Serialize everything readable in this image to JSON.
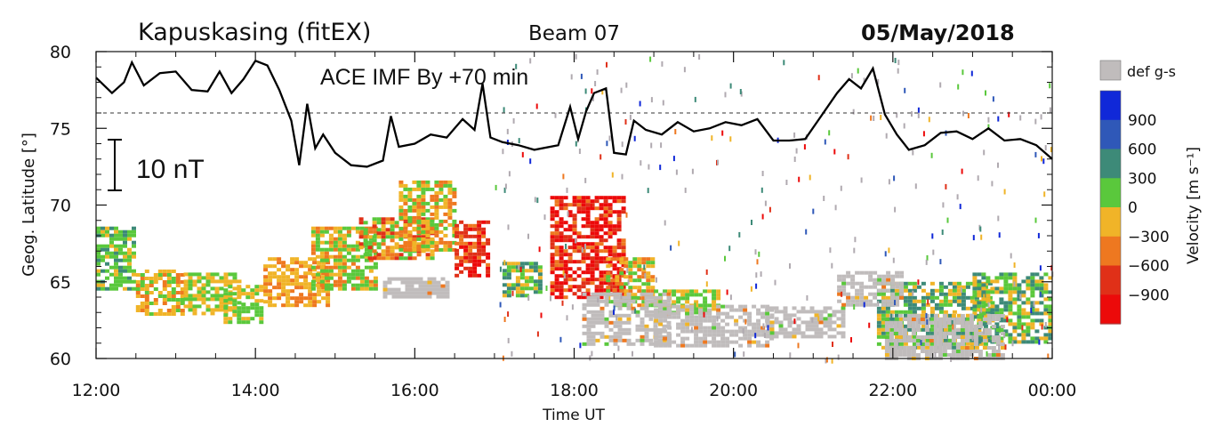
{
  "header": {
    "station": "Kapuskasing (fitEX)",
    "beam": "Beam 07",
    "date": "05/May/2018"
  },
  "chart_data": {
    "type": "heatmap",
    "xlabel": "Time UT",
    "ylabel": "Geog. Latitude [°]",
    "x_ticks": [
      "12:00",
      "14:00",
      "16:00",
      "18:00",
      "20:00",
      "22:00",
      "00:00"
    ],
    "x_range_hours": [
      12,
      24
    ],
    "y_ticks": [
      60,
      65,
      70,
      75,
      80
    ],
    "ylim": [
      60,
      80
    ],
    "colorbar": {
      "label": "Velocity [m s⁻¹]",
      "gs_label": "def g-s",
      "gs_color": "#c0bcbc",
      "ticks": [
        "900",
        "600",
        "300",
        "0",
        "−300",
        "−600",
        "−900"
      ],
      "colors": [
        "#1028d8",
        "#2f58b8",
        "#3d8a78",
        "#5ac83c",
        "#f0b428",
        "#ee7820",
        "#e03018",
        "#ec0a0a"
      ]
    },
    "overlay": {
      "label": "ACE IMF By  +70 min",
      "scale_label": "10 nT",
      "reference_latitude": 76,
      "trace_latitude": [
        [
          12.0,
          78.3
        ],
        [
          12.2,
          77.3
        ],
        [
          12.35,
          78.0
        ],
        [
          12.45,
          79.3
        ],
        [
          12.6,
          77.8
        ],
        [
          12.8,
          78.6
        ],
        [
          13.0,
          78.7
        ],
        [
          13.2,
          77.5
        ],
        [
          13.4,
          77.4
        ],
        [
          13.55,
          78.7
        ],
        [
          13.7,
          77.3
        ],
        [
          13.85,
          78.2
        ],
        [
          14.0,
          79.4
        ],
        [
          14.15,
          79.1
        ],
        [
          14.3,
          77.5
        ],
        [
          14.45,
          75.5
        ],
        [
          14.55,
          72.6
        ],
        [
          14.65,
          76.6
        ],
        [
          14.75,
          73.7
        ],
        [
          14.85,
          74.6
        ],
        [
          15.0,
          73.4
        ],
        [
          15.2,
          72.6
        ],
        [
          15.4,
          72.5
        ],
        [
          15.6,
          72.9
        ],
        [
          15.7,
          75.8
        ],
        [
          15.8,
          73.8
        ],
        [
          16.0,
          74.0
        ],
        [
          16.2,
          74.6
        ],
        [
          16.4,
          74.4
        ],
        [
          16.6,
          75.6
        ],
        [
          16.75,
          74.9
        ],
        [
          16.85,
          77.9
        ],
        [
          16.95,
          74.4
        ],
        [
          17.1,
          74.1
        ],
        [
          17.3,
          73.9
        ],
        [
          17.5,
          73.6
        ],
        [
          17.8,
          73.9
        ],
        [
          17.95,
          76.4
        ],
        [
          18.05,
          74.3
        ],
        [
          18.15,
          76.1
        ],
        [
          18.25,
          77.3
        ],
        [
          18.4,
          77.6
        ],
        [
          18.5,
          73.4
        ],
        [
          18.65,
          73.3
        ],
        [
          18.75,
          75.5
        ],
        [
          18.9,
          74.9
        ],
        [
          19.1,
          74.6
        ],
        [
          19.3,
          75.4
        ],
        [
          19.5,
          74.8
        ],
        [
          19.7,
          75.0
        ],
        [
          19.9,
          75.4
        ],
        [
          20.1,
          75.2
        ],
        [
          20.3,
          75.6
        ],
        [
          20.5,
          74.2
        ],
        [
          20.7,
          74.2
        ],
        [
          20.9,
          74.3
        ],
        [
          21.1,
          75.8
        ],
        [
          21.3,
          77.3
        ],
        [
          21.45,
          78.2
        ],
        [
          21.6,
          77.6
        ],
        [
          21.75,
          78.9
        ],
        [
          21.9,
          75.9
        ],
        [
          22.05,
          74.6
        ],
        [
          22.2,
          73.6
        ],
        [
          22.4,
          73.9
        ],
        [
          22.6,
          74.7
        ],
        [
          22.8,
          74.8
        ],
        [
          23.0,
          74.3
        ],
        [
          23.2,
          75.0
        ],
        [
          23.4,
          74.2
        ],
        [
          23.6,
          74.3
        ],
        [
          23.8,
          73.9
        ],
        [
          24.0,
          73.0
        ]
      ]
    },
    "backscatter_bands": [
      {
        "type": "velocity",
        "x": [
          12.0,
          12.5
        ],
        "y": [
          64.5,
          68.6
        ],
        "palette": [
          3,
          3,
          4,
          3,
          2
        ]
      },
      {
        "type": "velocity",
        "x": [
          12.5,
          13.1
        ],
        "y": [
          62.8,
          65.8
        ],
        "palette": [
          4,
          4,
          3,
          5
        ]
      },
      {
        "type": "velocity",
        "x": [
          13.1,
          13.8
        ],
        "y": [
          63.0,
          65.6
        ],
        "palette": [
          4,
          3,
          4
        ]
      },
      {
        "type": "velocity",
        "x": [
          13.6,
          14.1
        ],
        "y": [
          62.3,
          64.8
        ],
        "palette": [
          3,
          4,
          3
        ]
      },
      {
        "type": "velocity",
        "x": [
          14.1,
          14.9
        ],
        "y": [
          63.5,
          66.6
        ],
        "palette": [
          4,
          5,
          4
        ]
      },
      {
        "type": "velocity",
        "x": [
          14.7,
          15.5
        ],
        "y": [
          64.5,
          68.6
        ],
        "palette": [
          3,
          4,
          5,
          3
        ]
      },
      {
        "type": "velocity",
        "x": [
          15.3,
          16.2
        ],
        "y": [
          66.5,
          69.2
        ],
        "palette": [
          4,
          5,
          6,
          3
        ]
      },
      {
        "type": "velocity",
        "x": [
          15.8,
          16.5
        ],
        "y": [
          67.0,
          71.6
        ],
        "palette": [
          3,
          5,
          4
        ]
      },
      {
        "type": "velocity",
        "x": [
          16.5,
          16.9
        ],
        "y": [
          65.5,
          69.0
        ],
        "palette": [
          6,
          7,
          6,
          5
        ]
      },
      {
        "type": "velocity",
        "x": [
          17.1,
          17.6
        ],
        "y": [
          64.0,
          66.3
        ],
        "palette": [
          3,
          4,
          2
        ]
      },
      {
        "type": "velocity",
        "x": [
          17.7,
          18.6
        ],
        "y": [
          64.0,
          70.6
        ],
        "palette": [
          7,
          6,
          5,
          7
        ]
      },
      {
        "type": "velocity",
        "x": [
          18.4,
          19.0
        ],
        "y": [
          63.4,
          66.6
        ],
        "palette": [
          4,
          5,
          3
        ]
      },
      {
        "type": "velocity",
        "x": [
          19.0,
          19.8
        ],
        "y": [
          63.0,
          64.5
        ],
        "palette": [
          3,
          4
        ]
      },
      {
        "type": "velocity",
        "x": [
          21.8,
          23.2
        ],
        "y": [
          60.8,
          65.0
        ],
        "palette": [
          3,
          2,
          4
        ]
      },
      {
        "type": "velocity",
        "x": [
          23.0,
          24.0
        ],
        "y": [
          61.0,
          65.6
        ],
        "palette": [
          3,
          4,
          2
        ]
      },
      {
        "type": "gs",
        "x": [
          18.1,
          19.2
        ],
        "y": [
          60.9,
          64.3
        ]
      },
      {
        "type": "gs",
        "x": [
          19.0,
          20.5
        ],
        "y": [
          60.8,
          63.5
        ]
      },
      {
        "type": "gs",
        "x": [
          20.4,
          21.4
        ],
        "y": [
          61.4,
          63.4
        ]
      },
      {
        "type": "gs",
        "x": [
          21.3,
          22.1
        ],
        "y": [
          63.5,
          65.7
        ]
      },
      {
        "type": "gs",
        "x": [
          21.9,
          23.4
        ],
        "y": [
          60.0,
          62.9
        ]
      },
      {
        "type": "gs",
        "x": [
          15.6,
          16.4
        ],
        "y": [
          64.0,
          65.3
        ]
      }
    ]
  }
}
